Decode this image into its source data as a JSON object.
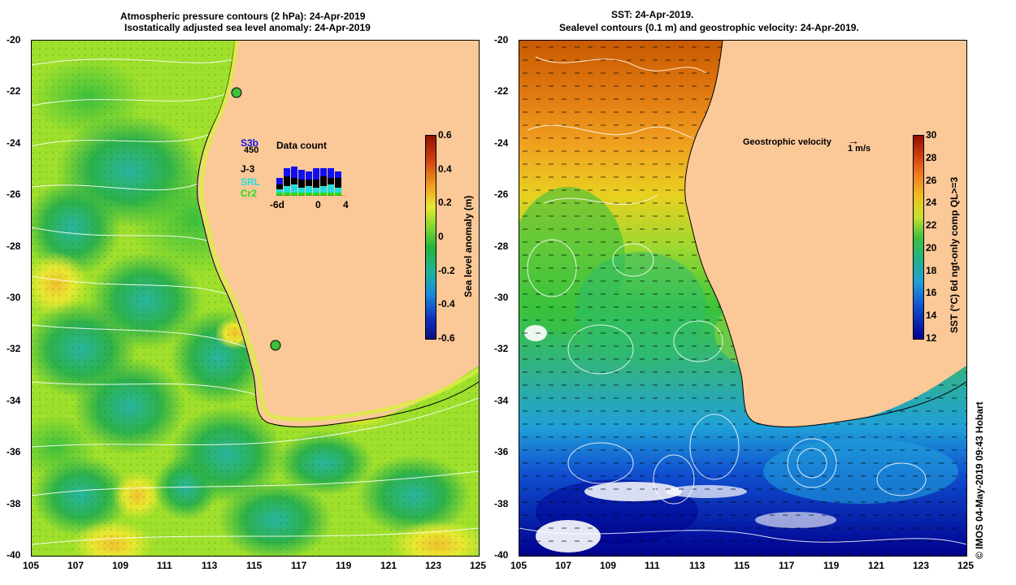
{
  "left_panel": {
    "title_line1": "Atmospheric pressure contours (2 hPa): 24-Apr-2019",
    "title_line2": "Isostatically adjusted sea level anomaly: 24-Apr-2019",
    "colorbar": {
      "label": "Sea level anomaly (m)",
      "ticks": [
        "0.6",
        "0.4",
        "0.2",
        "0",
        "-0.2",
        "-0.4",
        "-0.6"
      ]
    },
    "legend": {
      "satellites": [
        "S3b",
        "J-3",
        "SRL",
        "Cr2"
      ],
      "count_value": "450",
      "title": "Data count",
      "axis_labels": [
        "-6d",
        "0",
        "4"
      ],
      "colors": [
        "#1010ee",
        "#000000",
        "#22dddd",
        "#22dd22"
      ]
    }
  },
  "right_panel": {
    "title_line1": "SST: 24-Apr-2019.",
    "title_line2": "Sealevel contours (0.1 m) and geostrophic velocity: 24-Apr-2019.",
    "velocity_label": "Geostrophic velocity",
    "velocity_scale": "1 m/s",
    "colorbar": {
      "label": "SST (°C) 6d ngt-only comp QL>=3",
      "ticks": [
        "30",
        "28",
        "26",
        "24",
        "22",
        "20",
        "18",
        "16",
        "14",
        "12"
      ]
    }
  },
  "axes": {
    "x_ticks": [
      "105",
      "107",
      "109",
      "111",
      "113",
      "115",
      "117",
      "119",
      "121",
      "123",
      "125"
    ],
    "y_ticks": [
      "-20",
      "-22",
      "-24",
      "-26",
      "-28",
      "-30",
      "-32",
      "-34",
      "-36",
      "-38",
      "-40"
    ]
  },
  "credit": "© IMOS 04-May-2019 09:43 Hobart",
  "colors": {
    "land": "#fbc898",
    "sla_high": "#a01000",
    "sla_mid": "#23b53a",
    "sla_low": "#101080",
    "sst_high": "#a01000",
    "sst_low": "#000090"
  }
}
